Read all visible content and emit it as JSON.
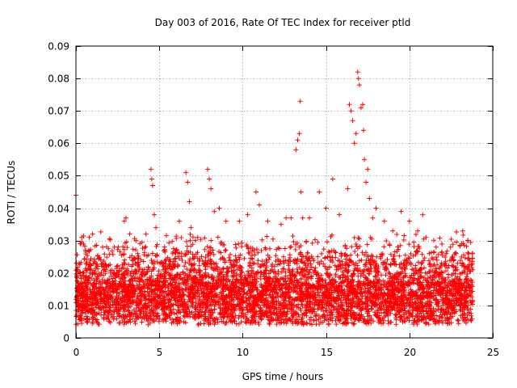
{
  "chart_data": {
    "type": "scatter",
    "title": "Day 003 of 2016, Rate Of TEC Index for receiver ptld",
    "xlabel": "GPS time / hours",
    "ylabel": "ROTI / TECUs",
    "xlim": [
      0,
      25
    ],
    "ylim": [
      0,
      0.09
    ],
    "xticks": [
      0,
      5,
      10,
      15,
      20,
      25
    ],
    "yticks": [
      0,
      0.01,
      0.02,
      0.03,
      0.04,
      0.05,
      0.06,
      0.07,
      0.08,
      0.09
    ],
    "xtick_labels": [
      "0",
      "5",
      "10",
      "15",
      "20",
      "25"
    ],
    "ytick_labels": [
      "0",
      "0.01",
      "0.02",
      "0.03",
      "0.04",
      "0.05",
      "0.06",
      "0.07",
      "0.08",
      "0.09"
    ],
    "grid": true,
    "marker": "+",
    "series": [
      {
        "name": "ROTI",
        "color": "#ff0000",
        "points": [
          [
            0.0,
            0.044
          ],
          [
            0.1,
            0.021
          ],
          [
            0.3,
            0.029
          ],
          [
            0.35,
            0.031
          ],
          [
            0.8,
            0.031
          ],
          [
            1.0,
            0.032
          ],
          [
            1.6,
            0.028
          ],
          [
            2.3,
            0.028
          ],
          [
            2.9,
            0.036
          ],
          [
            3.0,
            0.037
          ],
          [
            3.6,
            0.03
          ],
          [
            4.2,
            0.032
          ],
          [
            4.5,
            0.052
          ],
          [
            4.55,
            0.049
          ],
          [
            4.6,
            0.047
          ],
          [
            4.7,
            0.038
          ],
          [
            4.8,
            0.034
          ],
          [
            5.3,
            0.027
          ],
          [
            5.8,
            0.026
          ],
          [
            6.2,
            0.036
          ],
          [
            6.6,
            0.051
          ],
          [
            6.7,
            0.048
          ],
          [
            6.8,
            0.042
          ],
          [
            6.9,
            0.034
          ],
          [
            7.3,
            0.031
          ],
          [
            7.9,
            0.052
          ],
          [
            8.0,
            0.049
          ],
          [
            8.1,
            0.046
          ],
          [
            8.3,
            0.039
          ],
          [
            8.6,
            0.04
          ],
          [
            9.0,
            0.036
          ],
          [
            9.8,
            0.036
          ],
          [
            10.3,
            0.038
          ],
          [
            10.8,
            0.045
          ],
          [
            11.0,
            0.041
          ],
          [
            11.5,
            0.036
          ],
          [
            12.3,
            0.035
          ],
          [
            12.6,
            0.037
          ],
          [
            12.9,
            0.037
          ],
          [
            13.2,
            0.058
          ],
          [
            13.3,
            0.061
          ],
          [
            13.4,
            0.063
          ],
          [
            13.45,
            0.073
          ],
          [
            13.5,
            0.045
          ],
          [
            13.6,
            0.037
          ],
          [
            14.0,
            0.037
          ],
          [
            14.6,
            0.045
          ],
          [
            15.0,
            0.04
          ],
          [
            15.4,
            0.049
          ],
          [
            15.8,
            0.038
          ],
          [
            16.3,
            0.046
          ],
          [
            16.4,
            0.072
          ],
          [
            16.5,
            0.07
          ],
          [
            16.6,
            0.067
          ],
          [
            16.7,
            0.06
          ],
          [
            16.8,
            0.063
          ],
          [
            16.9,
            0.082
          ],
          [
            16.95,
            0.08
          ],
          [
            17.0,
            0.078
          ],
          [
            17.1,
            0.071
          ],
          [
            17.2,
            0.072
          ],
          [
            17.25,
            0.064
          ],
          [
            17.3,
            0.055
          ],
          [
            17.4,
            0.048
          ],
          [
            17.5,
            0.052
          ],
          [
            17.6,
            0.043
          ],
          [
            17.8,
            0.037
          ],
          [
            18.0,
            0.04
          ],
          [
            18.5,
            0.036
          ],
          [
            19.0,
            0.033
          ],
          [
            19.5,
            0.039
          ],
          [
            20.0,
            0.036
          ],
          [
            20.5,
            0.033
          ],
          [
            20.8,
            0.038
          ],
          [
            21.0,
            0.031
          ],
          [
            21.6,
            0.028
          ],
          [
            22.2,
            0.026
          ],
          [
            22.8,
            0.026
          ],
          [
            23.2,
            0.033
          ],
          [
            23.5,
            0.03
          ],
          [
            23.8,
            0.021
          ]
        ]
      }
    ]
  }
}
